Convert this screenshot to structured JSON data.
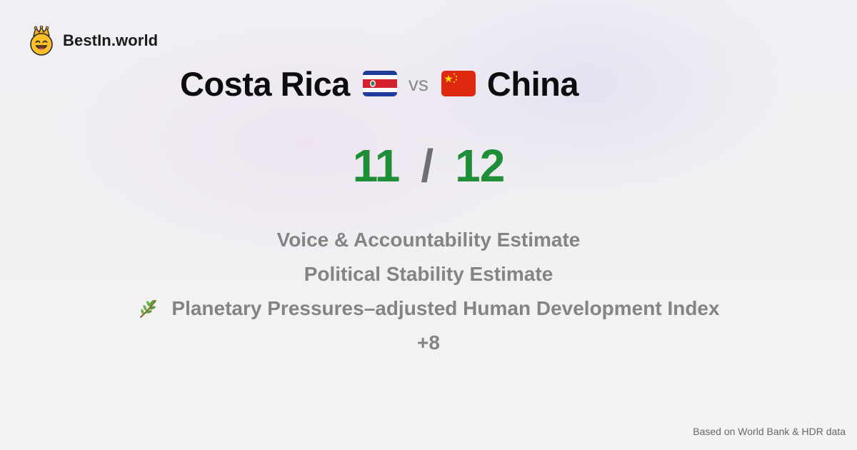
{
  "brand": {
    "name": "BestIn.world",
    "logo_icon": "crowned-smiley-logo"
  },
  "comparison": {
    "left_country": "Costa Rica",
    "left_flag_icon": "costa-rica-flag-icon",
    "vs_label": "vs",
    "right_country": "China",
    "right_flag_icon": "china-flag-icon"
  },
  "score": {
    "left": "11",
    "separator": "/",
    "right": "12",
    "color": "#1f8f37"
  },
  "metrics": [
    {
      "label": "Voice & Accountability Estimate"
    },
    {
      "label": "Political Stability Estimate"
    },
    {
      "label": "Planetary Pressures–adjusted Human Development Index",
      "icon": "herb-icon"
    }
  ],
  "more_label": "+8",
  "source_note": "Based on World Bank & HDR data"
}
